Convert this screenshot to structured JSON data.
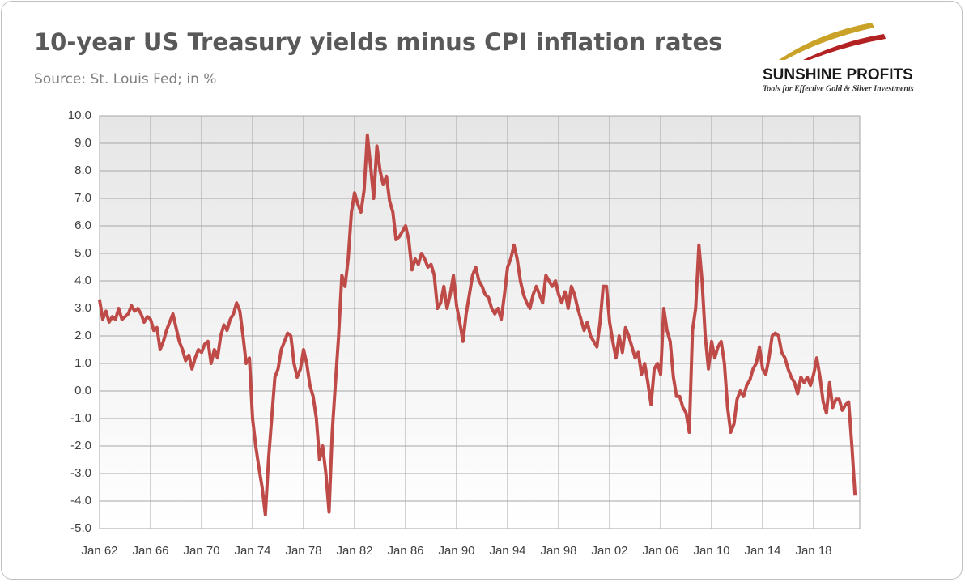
{
  "chart_data": {
    "type": "line",
    "title": "10-year US Treasury yields minus CPI inflation rates",
    "subtitle": "Source: St. Louis Fed; in %",
    "logo": {
      "name": "SUNSHINE PROFITS",
      "tagline": "Tools for Effective Gold & Silver Investments"
    },
    "categories": [
      "Jan 62",
      null,
      null,
      null,
      null,
      null,
      null,
      null,
      null,
      null,
      null,
      null,
      null,
      null,
      null,
      null,
      "Jan 66",
      null,
      null,
      null,
      null,
      null,
      null,
      null,
      null,
      null,
      null,
      null,
      null,
      null,
      null,
      null,
      "Jan 70",
      null,
      null,
      null,
      null,
      null,
      null,
      null,
      null,
      null,
      null,
      null,
      null,
      null,
      null,
      null,
      "Jan 74",
      null,
      null,
      null,
      null,
      null,
      null,
      null,
      null,
      null,
      null,
      null,
      null,
      null,
      null,
      null,
      "Jan 78",
      null,
      null,
      null,
      null,
      null,
      null,
      null,
      null,
      null,
      null,
      null,
      null,
      null,
      null,
      null,
      "Jan 82",
      null,
      null,
      null,
      null,
      null,
      null,
      null,
      null,
      null,
      null,
      null,
      null,
      null,
      null,
      null,
      "Jan 86",
      null,
      null,
      null,
      null,
      null,
      null,
      null,
      null,
      null,
      null,
      null,
      null,
      null,
      null,
      null,
      "Jan 90",
      null,
      null,
      null,
      null,
      null,
      null,
      null,
      null,
      null,
      null,
      null,
      null,
      null,
      null,
      null,
      "Jan 94",
      null,
      null,
      null,
      null,
      null,
      null,
      null,
      null,
      null,
      null,
      null,
      null,
      null,
      null,
      null,
      "Jan 98",
      null,
      null,
      null,
      null,
      null,
      null,
      null,
      null,
      null,
      null,
      null,
      null,
      null,
      null,
      null,
      "Jan 02",
      null,
      null,
      null,
      null,
      null,
      null,
      null,
      null,
      null,
      null,
      null,
      null,
      null,
      null,
      null,
      "Jan 06",
      null,
      null,
      null,
      null,
      null,
      null,
      null,
      null,
      null,
      null,
      null,
      null,
      null,
      null,
      null,
      "Jan 10",
      null,
      null,
      null,
      null,
      null,
      null,
      null,
      null,
      null,
      null,
      null,
      null,
      null,
      null,
      null,
      "Jan 14",
      null,
      null,
      null,
      null,
      null,
      null,
      null,
      null,
      null,
      null,
      null,
      null,
      null,
      null,
      null,
      "Jan 18",
      null,
      null,
      null,
      null,
      null,
      null,
      null,
      null,
      null,
      null,
      null,
      null,
      null
    ],
    "series": [
      {
        "color": "#be4b48",
        "values": [
          3.3,
          2.6,
          2.9,
          2.5,
          2.7,
          2.6,
          3.0,
          2.6,
          2.7,
          2.8,
          3.1,
          2.9,
          3.0,
          2.8,
          2.5,
          2.7,
          2.6,
          2.2,
          2.3,
          1.5,
          1.8,
          2.2,
          2.5,
          2.8,
          2.3,
          1.8,
          1.5,
          1.1,
          1.3,
          0.8,
          1.2,
          1.5,
          1.4,
          1.7,
          1.8,
          1.0,
          1.5,
          1.2,
          2.0,
          2.4,
          2.2,
          2.6,
          2.8,
          3.2,
          2.9,
          2.0,
          1.0,
          1.2,
          -1.0,
          -2.0,
          -2.8,
          -3.5,
          -4.5,
          -2.5,
          -1.0,
          0.5,
          0.8,
          1.5,
          1.8,
          2.1,
          2.0,
          1.0,
          0.5,
          0.8,
          1.5,
          1.0,
          0.2,
          -0.2,
          -1.0,
          -2.5,
          -2.0,
          -3.0,
          -4.4,
          -1.5,
          0.3,
          2.0,
          4.2,
          3.8,
          4.8,
          6.5,
          7.2,
          6.8,
          6.5,
          7.3,
          9.3,
          8.2,
          7.0,
          8.9,
          8.0,
          7.5,
          7.8,
          6.9,
          6.5,
          5.5,
          5.6,
          5.8,
          6.0,
          5.5,
          4.4,
          4.8,
          4.6,
          5.0,
          4.8,
          4.5,
          4.6,
          4.2,
          3.0,
          3.2,
          3.8,
          3.0,
          3.5,
          4.2,
          3.1,
          2.5,
          1.8,
          2.8,
          3.5,
          4.2,
          4.5,
          4.0,
          3.8,
          3.5,
          3.4,
          3.0,
          2.8,
          3.0,
          2.6,
          3.5,
          4.5,
          4.8,
          5.3,
          4.8,
          4.0,
          3.5,
          3.2,
          3.0,
          3.5,
          3.8,
          3.5,
          3.2,
          4.2,
          4.0,
          3.8,
          4.0,
          3.5,
          3.2,
          3.6,
          3.0,
          3.8,
          3.5,
          3.0,
          2.6,
          2.2,
          2.5,
          2.0,
          1.8,
          1.6,
          2.5,
          3.8,
          3.8,
          2.5,
          1.8,
          1.2,
          2.0,
          1.4,
          2.3,
          2.0,
          1.6,
          1.2,
          1.4,
          0.6,
          1.0,
          0.3,
          -0.5,
          0.8,
          1.0,
          0.6,
          3.0,
          2.2,
          1.8,
          0.5,
          -0.2,
          -0.2,
          -0.6,
          -0.8,
          -1.5,
          2.2,
          3.0,
          5.3,
          4.0,
          2.0,
          0.8,
          1.8,
          1.2,
          1.6,
          1.8,
          1.0,
          -0.6,
          -1.5,
          -1.2,
          -0.3,
          0.0,
          -0.2,
          0.2,
          0.4,
          0.8,
          1.0,
          1.6,
          0.8,
          0.6,
          1.2,
          2.0,
          2.1,
          2.0,
          1.4,
          1.2,
          0.8,
          0.5,
          0.3,
          -0.1,
          0.5,
          0.3,
          0.5,
          0.2,
          0.6,
          1.2,
          0.5,
          -0.4,
          -0.8,
          0.3,
          -0.6,
          -0.3,
          -0.3,
          -0.7,
          -0.5,
          -0.4,
          -2.0,
          -3.8
        ]
      }
    ],
    "ylim": [
      -5,
      10
    ],
    "yticks": [
      {
        "value": 10,
        "label": "10.0"
      },
      {
        "value": 9,
        "label": "9.0"
      },
      {
        "value": 8,
        "label": "8.0"
      },
      {
        "value": 7,
        "label": "7.0"
      },
      {
        "value": 6,
        "label": "6.0"
      },
      {
        "value": 5,
        "label": "5.0"
      },
      {
        "value": 4,
        "label": "4.0"
      },
      {
        "value": 3,
        "label": "3.0"
      },
      {
        "value": 2,
        "label": "2.0"
      },
      {
        "value": 1,
        "label": "1.0"
      },
      {
        "value": 0,
        "label": "0.0"
      },
      {
        "value": -1,
        "label": "-1.0"
      },
      {
        "value": -2,
        "label": "-2.0"
      },
      {
        "value": -3,
        "label": "-3.0"
      },
      {
        "value": -4,
        "label": "-4.0"
      },
      {
        "value": -5,
        "label": "-5.0"
      }
    ],
    "grid": true
  }
}
